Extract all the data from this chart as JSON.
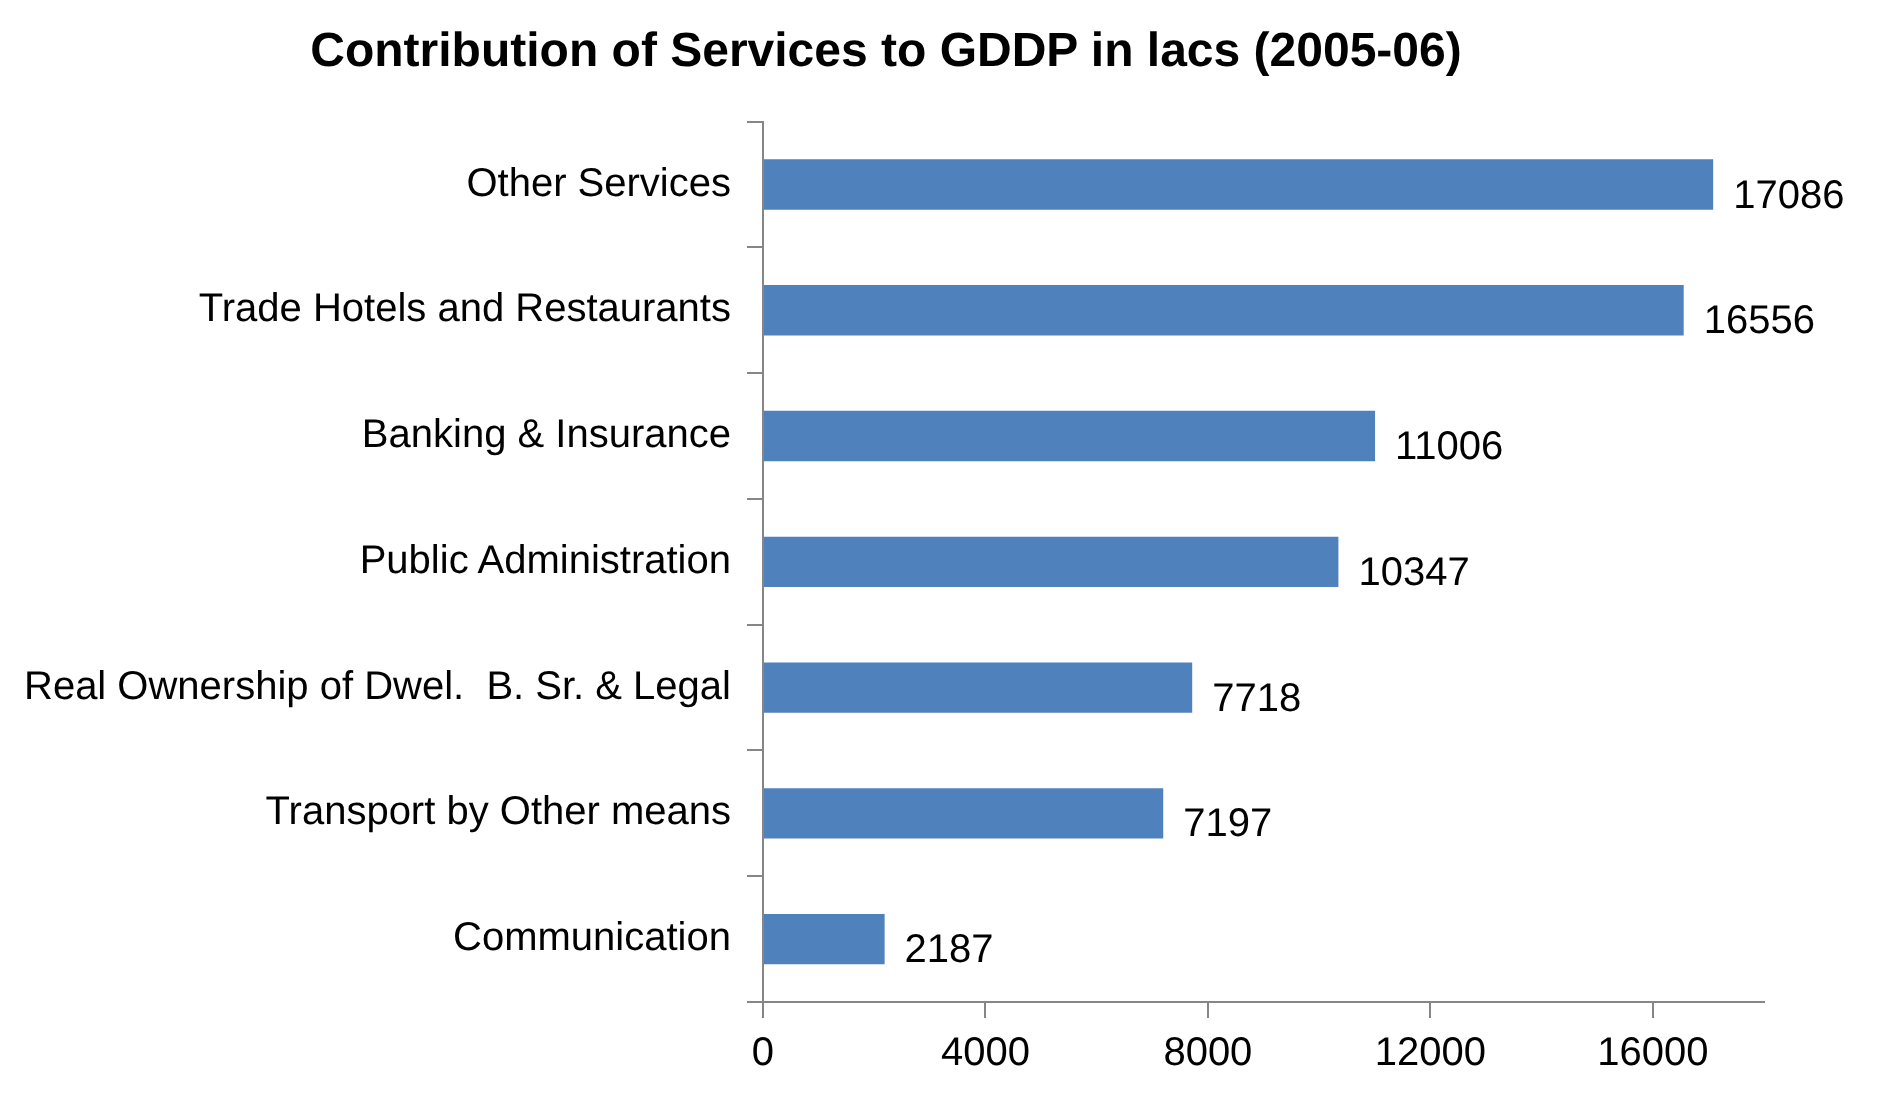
{
  "chart_data": {
    "type": "bar",
    "orientation": "horizontal",
    "title": "Contribution of Services to GDDP in lacs (2005-06)",
    "categories": [
      "Other Services",
      "Trade Hotels and Restaurants",
      "Banking & Insurance",
      "Public Administration",
      "Real Ownership of Dwel.  B. Sr. & Legal",
      "Transport by Other means",
      "Communication"
    ],
    "values": [
      17086,
      16556,
      11006,
      10347,
      7718,
      7197,
      2187
    ],
    "color": "#4f81bd",
    "xlim": [
      0,
      18000
    ],
    "xticks": [
      0,
      4000,
      8000,
      12000,
      16000
    ],
    "grid": false,
    "legend": false,
    "data_labels": true
  }
}
